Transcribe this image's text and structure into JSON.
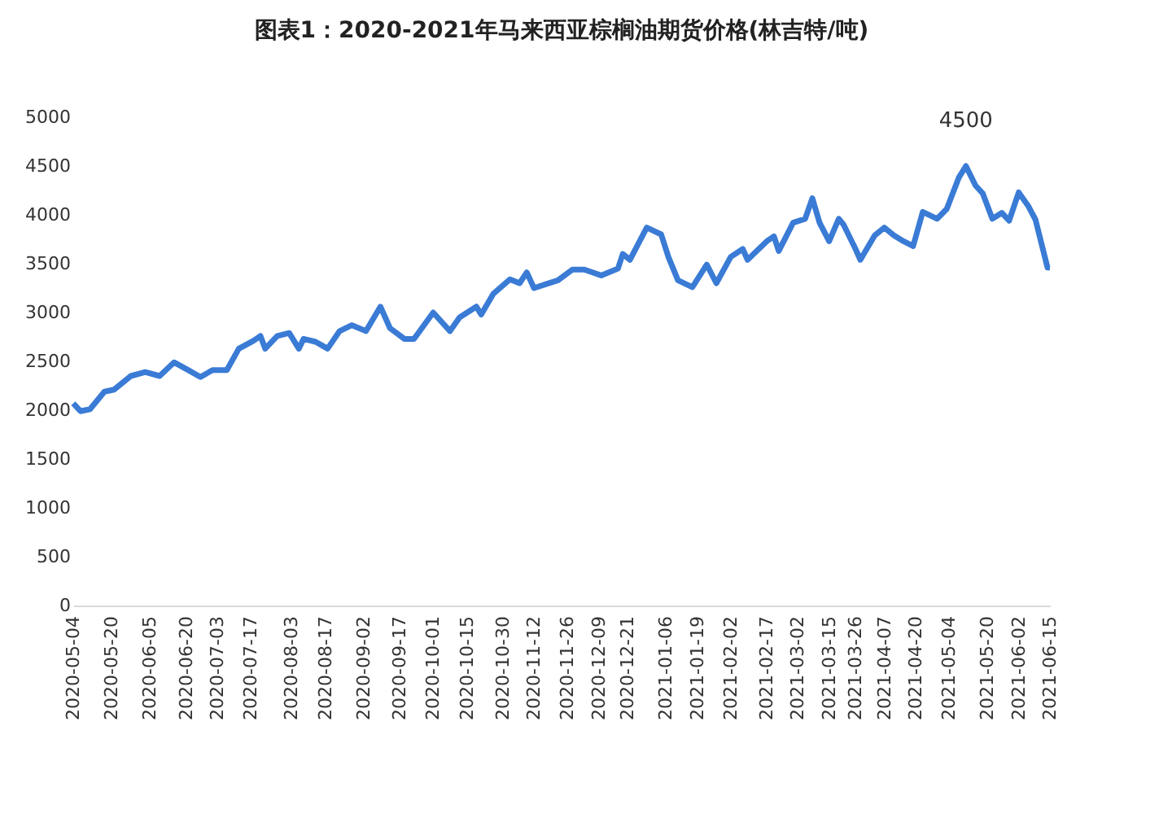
{
  "chart_data": {
    "type": "line",
    "title": "图表1：2020-2021年马来西亚棕榈油期货价格(林吉特/吨)",
    "x": [
      "2020-05-04",
      "2020-05-07",
      "2020-05-11",
      "2020-05-17",
      "2020-05-21",
      "2020-05-28",
      "2020-06-03",
      "2020-06-09",
      "2020-06-15",
      "2020-06-21",
      "2020-06-26",
      "2020-07-01",
      "2020-07-07",
      "2020-07-12",
      "2020-07-18",
      "2020-07-21",
      "2020-07-23",
      "2020-07-28",
      "2020-08-02",
      "2020-08-06",
      "2020-08-08",
      "2020-08-13",
      "2020-08-18",
      "2020-08-23",
      "2020-08-28",
      "2020-09-03",
      "2020-09-09",
      "2020-09-13",
      "2020-09-19",
      "2020-09-23",
      "2020-10-01",
      "2020-10-08",
      "2020-10-12",
      "2020-10-19",
      "2020-10-21",
      "2020-10-26",
      "2020-11-02",
      "2020-11-06",
      "2020-11-09",
      "2020-11-12",
      "2020-11-17",
      "2020-11-22",
      "2020-11-28",
      "2020-12-03",
      "2020-12-10",
      "2020-12-17",
      "2020-12-19",
      "2020-12-22",
      "2020-12-29",
      "2021-01-04",
      "2021-01-07",
      "2021-01-11",
      "2021-01-17",
      "2021-01-23",
      "2021-01-27",
      "2021-02-02",
      "2021-02-07",
      "2021-02-09",
      "2021-02-17",
      "2021-02-20",
      "2021-02-22",
      "2021-02-28",
      "2021-03-05",
      "2021-03-08",
      "2021-03-11",
      "2021-03-15",
      "2021-03-19",
      "2021-03-21",
      "2021-03-26",
      "2021-03-28",
      "2021-04-03",
      "2021-04-07",
      "2021-04-11",
      "2021-04-15",
      "2021-04-19",
      "2021-04-23",
      "2021-04-29",
      "2021-05-03",
      "2021-05-08",
      "2021-05-11",
      "2021-05-15",
      "2021-05-18",
      "2021-05-22",
      "2021-05-26",
      "2021-05-29",
      "2021-06-02",
      "2021-06-06",
      "2021-06-09",
      "2021-06-14",
      "2021-06-15"
    ],
    "series": [
      {
        "color": "#3a7bd5",
        "values": [
          2070,
          1990,
          2010,
          2190,
          2210,
          2350,
          2390,
          2350,
          2490,
          2410,
          2340,
          2410,
          2410,
          2630,
          2710,
          2760,
          2630,
          2760,
          2790,
          2630,
          2730,
          2700,
          2630,
          2810,
          2870,
          2810,
          3060,
          2840,
          2730,
          2730,
          3000,
          2810,
          2950,
          3060,
          2980,
          3190,
          3340,
          3300,
          3410,
          3250,
          3290,
          3330,
          3440,
          3440,
          3380,
          3450,
          3600,
          3540,
          3870,
          3800,
          3570,
          3330,
          3260,
          3490,
          3300,
          3570,
          3650,
          3540,
          3730,
          3780,
          3630,
          3920,
          3960,
          4170,
          3920,
          3730,
          3960,
          3900,
          3650,
          3540,
          3790,
          3870,
          3790,
          3730,
          3680,
          4030,
          3960,
          4060,
          4380,
          4500,
          4300,
          4220,
          3960,
          4020,
          3940,
          4230,
          4090,
          3950,
          3460,
          3460
        ]
      }
    ],
    "xlim": [
      "2020-05-04",
      "2021-06-15"
    ],
    "xticks": [
      "2020-05-04",
      "2020-05-20",
      "2020-06-05",
      "2020-06-20",
      "2020-07-03",
      "2020-07-17",
      "2020-08-03",
      "2020-08-17",
      "2020-09-02",
      "2020-09-17",
      "2020-10-01",
      "2020-10-15",
      "2020-10-30",
      "2020-11-12",
      "2020-11-26",
      "2020-12-09",
      "2020-12-21",
      "2021-01-06",
      "2021-01-19",
      "2021-02-02",
      "2021-02-17",
      "2021-03-02",
      "2021-03-15",
      "2021-03-26",
      "2021-04-07",
      "2021-04-20",
      "2021-05-04",
      "2021-05-20",
      "2021-06-02",
      "2021-06-15"
    ],
    "ylim": [
      0,
      5000
    ],
    "yticks": [
      0,
      500,
      1000,
      1500,
      2000,
      2500,
      3000,
      3500,
      4000,
      4500,
      5000
    ],
    "grid": false,
    "legend": false,
    "marker": "none",
    "line_style": "solid",
    "annotations": [
      {
        "text": "4500",
        "x": "2021-05-11",
        "y": 4500
      }
    ]
  }
}
